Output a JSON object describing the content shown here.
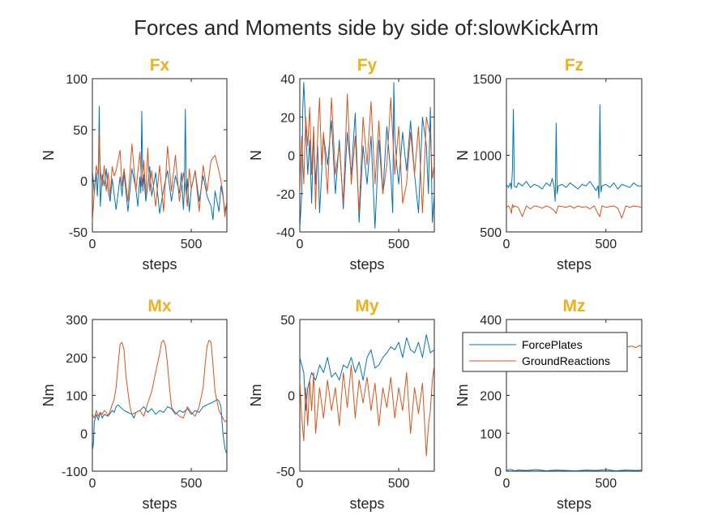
{
  "figure": {
    "title": "Forces and Moments side by side of:slowKickArm"
  },
  "colors": {
    "ForcePlates": "#0072BD",
    "GroundReactions": "#D95319",
    "subplot_title": "#EDB120",
    "axis": "#262626"
  },
  "legend": {
    "entries": [
      "ForcePlates",
      "GroundReactions"
    ],
    "placement": "inside top of Mz panel"
  },
  "chart_data": [
    {
      "type": "line",
      "title": "Fx",
      "xlabel": "steps",
      "ylabel": "N",
      "xlim": [
        0,
        680
      ],
      "ylim": [
        -50,
        100
      ],
      "xticks": [
        0,
        500
      ],
      "yticks": [
        -50,
        0,
        50,
        100
      ],
      "series": [
        {
          "name": "ForcePlates",
          "x": [
            0,
            10,
            20,
            25,
            30,
            35,
            40,
            50,
            60,
            70,
            80,
            90,
            100,
            120,
            140,
            150,
            160,
            180,
            200,
            220,
            230,
            240,
            245,
            250,
            255,
            260,
            270,
            280,
            290,
            300,
            320,
            340,
            360,
            380,
            400,
            420,
            440,
            450,
            460,
            465,
            470,
            475,
            480,
            490,
            500,
            520,
            540,
            560,
            580,
            600,
            610,
            620,
            640,
            650,
            660,
            670,
            680
          ],
          "y": [
            10,
            -12,
            8,
            -15,
            5,
            73,
            -25,
            6,
            -5,
            12,
            -10,
            -20,
            2,
            -28,
            4,
            -15,
            8,
            -30,
            12,
            -8,
            -25,
            4,
            -12,
            68,
            -10,
            6,
            -20,
            -5,
            14,
            -15,
            8,
            -32,
            -8,
            10,
            -20,
            5,
            -12,
            8,
            -28,
            -10,
            70,
            -15,
            2,
            -30,
            -8,
            10,
            -20,
            5,
            -15,
            -25,
            -38,
            -10,
            -30,
            -5,
            -15,
            -30,
            -20
          ]
        },
        {
          "name": "GroundReactions",
          "x": [
            0,
            10,
            20,
            30,
            35,
            40,
            50,
            60,
            70,
            80,
            90,
            100,
            110,
            120,
            140,
            150,
            160,
            180,
            200,
            220,
            240,
            250,
            260,
            270,
            280,
            290,
            300,
            320,
            340,
            360,
            380,
            400,
            420,
            440,
            460,
            470,
            480,
            490,
            500,
            520,
            540,
            560,
            580,
            600,
            620,
            640,
            650,
            660,
            670,
            680
          ],
          "y": [
            -40,
            -10,
            15,
            5,
            48,
            10,
            -5,
            15,
            -10,
            8,
            -15,
            14,
            5,
            10,
            30,
            -5,
            12,
            -20,
            36,
            -10,
            28,
            -5,
            20,
            -15,
            32,
            -10,
            10,
            -25,
            15,
            -30,
            34,
            -10,
            25,
            -20,
            8,
            -5,
            -25,
            12,
            -8,
            10,
            -30,
            15,
            -10,
            20,
            25,
            10,
            0,
            -12,
            -35,
            -20
          ]
        }
      ]
    },
    {
      "type": "line",
      "title": "Fy",
      "xlabel": "steps",
      "ylabel": "N",
      "xlim": [
        0,
        680
      ],
      "ylim": [
        -40,
        40
      ],
      "xticks": [
        0,
        500
      ],
      "yticks": [
        -40,
        -20,
        0,
        20,
        40
      ],
      "series": [
        {
          "name": "ForcePlates",
          "x": [
            0,
            10,
            15,
            20,
            30,
            40,
            50,
            60,
            70,
            80,
            90,
            100,
            120,
            140,
            160,
            180,
            200,
            220,
            240,
            260,
            280,
            300,
            320,
            340,
            360,
            380,
            400,
            420,
            440,
            460,
            470,
            475,
            480,
            490,
            500,
            520,
            540,
            560,
            580,
            600,
            620,
            640,
            650,
            660,
            670,
            680
          ],
          "y": [
            -38,
            -20,
            25,
            38,
            15,
            -10,
            8,
            -25,
            12,
            -15,
            5,
            -30,
            10,
            -5,
            18,
            -20,
            8,
            -28,
            12,
            -10,
            22,
            -35,
            5,
            -15,
            10,
            -38,
            8,
            -20,
            15,
            -10,
            -30,
            38,
            10,
            -5,
            -15,
            12,
            -8,
            18,
            -10,
            -30,
            20,
            5,
            -20,
            25,
            -35,
            -20
          ]
        },
        {
          "name": "GroundReactions",
          "x": [
            0,
            10,
            20,
            30,
            40,
            50,
            60,
            70,
            80,
            90,
            100,
            110,
            120,
            140,
            160,
            180,
            200,
            220,
            240,
            260,
            280,
            300,
            320,
            340,
            360,
            380,
            400,
            420,
            440,
            460,
            480,
            500,
            520,
            540,
            560,
            580,
            600,
            620,
            640,
            660,
            670,
            680
          ],
          "y": [
            -20,
            10,
            -15,
            20,
            5,
            25,
            -10,
            15,
            -28,
            10,
            30,
            -5,
            12,
            -20,
            30,
            -10,
            5,
            -25,
            32,
            -15,
            10,
            -30,
            20,
            -5,
            28,
            -15,
            18,
            -20,
            -5,
            30,
            -10,
            15,
            -25,
            -15,
            12,
            -10,
            15,
            -30,
            20,
            10,
            -12,
            -5
          ]
        }
      ]
    },
    {
      "type": "line",
      "title": "Fz",
      "xlabel": "steps",
      "ylabel": "N",
      "xlim": [
        0,
        680
      ],
      "ylim": [
        500,
        1500
      ],
      "xticks": [
        0,
        500
      ],
      "yticks": [
        500,
        1000,
        1500
      ],
      "series": [
        {
          "name": "ForcePlates",
          "x": [
            0,
            10,
            20,
            25,
            30,
            35,
            40,
            50,
            60,
            80,
            100,
            120,
            140,
            160,
            180,
            200,
            220,
            230,
            240,
            245,
            250,
            255,
            260,
            280,
            300,
            320,
            340,
            360,
            380,
            400,
            420,
            440,
            450,
            460,
            465,
            470,
            475,
            480,
            500,
            520,
            540,
            560,
            580,
            600,
            620,
            640,
            660,
            680
          ],
          "y": [
            810,
            790,
            820,
            780,
            900,
            1300,
            800,
            790,
            820,
            800,
            830,
            790,
            810,
            800,
            780,
            820,
            800,
            850,
            790,
            700,
            1210,
            750,
            800,
            810,
            790,
            820,
            800,
            780,
            810,
            800,
            830,
            790,
            770,
            800,
            720,
            1330,
            760,
            800,
            810,
            790,
            820,
            780,
            810,
            800,
            790,
            820,
            800,
            800
          ]
        },
        {
          "name": "GroundReactions",
          "x": [
            0,
            10,
            20,
            25,
            30,
            35,
            40,
            60,
            80,
            100,
            120,
            140,
            160,
            180,
            200,
            220,
            240,
            250,
            260,
            280,
            300,
            320,
            340,
            360,
            380,
            400,
            420,
            440,
            460,
            470,
            480,
            500,
            520,
            540,
            560,
            580,
            600,
            620,
            640,
            660,
            680
          ],
          "y": [
            660,
            670,
            650,
            620,
            680,
            660,
            670,
            660,
            600,
            670,
            650,
            670,
            665,
            655,
            670,
            660,
            640,
            620,
            670,
            665,
            660,
            670,
            655,
            670,
            660,
            665,
            650,
            670,
            620,
            600,
            670,
            660,
            665,
            670,
            655,
            590,
            670,
            660,
            670,
            665,
            660
          ]
        }
      ]
    },
    {
      "type": "line",
      "title": "Mx",
      "xlabel": "steps",
      "ylabel": "Nm",
      "xlim": [
        0,
        680
      ],
      "ylim": [
        -100,
        300
      ],
      "xticks": [
        0,
        500
      ],
      "yticks": [
        -100,
        0,
        100,
        200,
        300
      ],
      "series": [
        {
          "name": "ForcePlates",
          "x": [
            0,
            5,
            10,
            20,
            30,
            40,
            50,
            60,
            80,
            100,
            110,
            120,
            130,
            140,
            160,
            180,
            200,
            210,
            220,
            240,
            260,
            280,
            300,
            320,
            340,
            360,
            380,
            400,
            420,
            440,
            460,
            480,
            500,
            520,
            540,
            560,
            580,
            600,
            620,
            630,
            640,
            650,
            660,
            670,
            680
          ],
          "y": [
            -45,
            -30,
            30,
            50,
            35,
            55,
            40,
            50,
            45,
            60,
            55,
            70,
            75,
            70,
            60,
            55,
            50,
            40,
            55,
            60,
            70,
            55,
            65,
            50,
            60,
            55,
            70,
            65,
            50,
            60,
            55,
            65,
            50,
            60,
            55,
            70,
            75,
            80,
            85,
            90,
            85,
            70,
            0,
            -40,
            -55
          ]
        },
        {
          "name": "GroundReactions",
          "x": [
            0,
            10,
            20,
            30,
            40,
            50,
            60,
            70,
            80,
            90,
            100,
            110,
            120,
            130,
            140,
            150,
            160,
            170,
            180,
            190,
            200,
            220,
            240,
            260,
            280,
            300,
            320,
            340,
            350,
            360,
            370,
            380,
            390,
            400,
            410,
            420,
            440,
            460,
            480,
            500,
            520,
            540,
            560,
            570,
            580,
            590,
            600,
            610,
            620,
            640,
            660,
            670,
            680
          ],
          "y": [
            50,
            40,
            60,
            45,
            55,
            50,
            60,
            55,
            45,
            60,
            75,
            90,
            120,
            180,
            235,
            240,
            220,
            150,
            110,
            70,
            50,
            55,
            60,
            45,
            80,
            110,
            160,
            210,
            240,
            245,
            230,
            180,
            120,
            70,
            60,
            55,
            45,
            40,
            70,
            55,
            45,
            70,
            120,
            180,
            230,
            245,
            240,
            180,
            110,
            60,
            40,
            30,
            35
          ]
        }
      ]
    },
    {
      "type": "line",
      "title": "My",
      "xlabel": "steps",
      "ylabel": "Nm",
      "xlim": [
        0,
        680
      ],
      "ylim": [
        -50,
        50
      ],
      "xticks": [
        0,
        500
      ],
      "yticks": [
        -50,
        0,
        50
      ],
      "series": [
        {
          "name": "ForcePlates",
          "x": [
            0,
            10,
            20,
            30,
            40,
            60,
            80,
            100,
            120,
            140,
            160,
            180,
            200,
            220,
            240,
            260,
            280,
            300,
            320,
            340,
            360,
            380,
            400,
            420,
            440,
            460,
            480,
            500,
            520,
            540,
            560,
            580,
            600,
            620,
            640,
            660,
            680
          ],
          "y": [
            25,
            20,
            15,
            -10,
            5,
            15,
            10,
            20,
            15,
            25,
            12,
            15,
            10,
            20,
            18,
            25,
            15,
            22,
            10,
            25,
            30,
            18,
            20,
            25,
            28,
            32,
            30,
            35,
            25,
            38,
            30,
            28,
            35,
            25,
            40,
            28,
            30
          ]
        },
        {
          "name": "GroundReactions",
          "x": [
            0,
            10,
            20,
            30,
            40,
            50,
            60,
            70,
            80,
            100,
            120,
            140,
            160,
            180,
            200,
            220,
            240,
            260,
            280,
            300,
            320,
            340,
            360,
            380,
            400,
            420,
            440,
            460,
            480,
            500,
            520,
            540,
            560,
            580,
            600,
            620,
            640,
            650,
            660,
            670,
            680
          ],
          "y": [
            10,
            -15,
            -30,
            5,
            -20,
            10,
            -10,
            15,
            -25,
            5,
            -15,
            10,
            -10,
            5,
            -20,
            15,
            -8,
            20,
            -15,
            10,
            -5,
            12,
            -10,
            8,
            -20,
            5,
            -8,
            12,
            -15,
            5,
            -10,
            15,
            -25,
            5,
            -12,
            8,
            -40,
            -20,
            -10,
            10,
            20
          ]
        }
      ]
    },
    {
      "type": "line",
      "title": "Mz",
      "xlabel": "steps",
      "ylabel": "Nm",
      "xlim": [
        0,
        680
      ],
      "ylim": [
        0,
        400
      ],
      "xticks": [
        0,
        500
      ],
      "yticks": [
        0,
        100,
        200,
        300,
        400
      ],
      "series": [
        {
          "name": "ForcePlates",
          "x": [
            0,
            20,
            40,
            60,
            100,
            150,
            200,
            250,
            300,
            350,
            400,
            450,
            500,
            550,
            600,
            650,
            680
          ],
          "y": [
            2,
            5,
            1,
            3,
            2,
            4,
            1,
            3,
            2,
            1,
            3,
            2,
            4,
            1,
            3,
            2,
            3
          ]
        },
        {
          "name": "GroundReactions",
          "x": [
            610,
            630,
            650,
            670,
            680
          ],
          "y": [
            328,
            330,
            326,
            332,
            328
          ]
        }
      ]
    }
  ]
}
